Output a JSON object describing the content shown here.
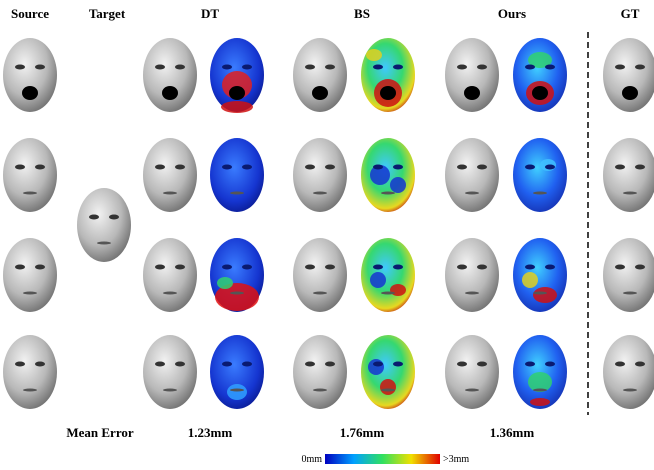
{
  "columns": [
    "Source",
    "Target",
    "DT",
    "BS",
    "Ours",
    "GT"
  ],
  "mean_error": {
    "label": "Mean Error",
    "values": [
      "1.23mm",
      "1.76mm",
      "1.36mm"
    ]
  },
  "colorbar": {
    "min": "0mm",
    "max": ">3mm"
  }
}
